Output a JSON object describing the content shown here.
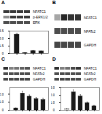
{
  "chart_data": [
    {
      "type": "heatmap",
      "title": "A",
      "rows": [
        "NFATC1",
        "p-ERK1/2",
        "ERK"
      ],
      "cells": [
        [
          0.22,
          0.22,
          0.22,
          0.22
        ],
        [
          0.55,
          0.22,
          0.22,
          0.22
        ],
        [
          0.3,
          0.3,
          0.3,
          0.3
        ]
      ],
      "tick_labels": "y"
    },
    {
      "type": "bar",
      "categories": [
        null,
        null,
        null,
        null
      ],
      "values": [
        3.8,
        0.15,
        0.55,
        0.45
      ],
      "errors": [
        0.25,
        0.04,
        0.08,
        0.08
      ],
      "colors": [
        "#1a1a1a",
        "#1a1a1a",
        "#1a1a1a",
        "#1a1a1a"
      ],
      "ylim": [
        0,
        4.5
      ],
      "yticks": [
        0,
        1.5,
        {
          "value": 3.0,
          "label": "3.0"
        },
        4.5
      ],
      "tick_labels": "y"
    },
    {
      "type": "heatmap",
      "title": "B",
      "rows": [
        "NFATC1",
        "NFATc2",
        "GAPDH"
      ],
      "cells": [
        [
          0.65,
          0.15,
          0.2,
          0.2
        ],
        [
          0.3,
          0.3,
          0.3,
          0.3
        ],
        [
          0.28,
          0.28,
          0.28,
          0.28
        ]
      ],
      "tick_labels": "y"
    },
    {
      "type": "heatmap",
      "title": "C",
      "rows": [
        "NFATC1",
        "NFATc2",
        "GAPDH"
      ],
      "cells": [
        [
          0.18,
          0.5,
          0.45,
          0.38,
          0.32
        ],
        [
          0.3,
          0.3,
          0.3,
          0.3,
          0.3
        ],
        [
          0.28,
          0.28,
          0.28,
          0.28,
          0.28
        ]
      ],
      "tick_labels": "y"
    },
    {
      "type": "bar",
      "categories": [
        null,
        null,
        null,
        null,
        null
      ],
      "values": [
        0.25,
        2.1,
        1.7,
        1.4,
        1.3
      ],
      "errors": [
        0.04,
        0.28,
        0.2,
        0.18,
        0.18
      ],
      "colors": [
        "#1a1a1a",
        "#1a1a1a",
        "#1a1a1a",
        "#1a1a1a",
        "#1a1a1a"
      ],
      "ylim": [
        0,
        2.8
      ],
      "yticks": [
        0,
        {
          "value": 1.0,
          "label": "1.0"
        },
        {
          "value": 2.0,
          "label": "2.0"
        }
      ],
      "tick_labels": "y"
    },
    {
      "type": "heatmap",
      "title": "D",
      "rows": [
        "NFATC1",
        "NFATc2",
        "GAPDH"
      ],
      "cells": [
        [
          0.18,
          0.5,
          0.44,
          0.28,
          0.2
        ],
        [
          0.3,
          0.3,
          0.3,
          0.3,
          0.3
        ],
        [
          0.28,
          0.28,
          0.28,
          0.28,
          0.28
        ]
      ],
      "tick_labels": "y"
    },
    {
      "type": "bar",
      "categories": [
        null,
        null,
        null,
        null,
        null
      ],
      "values": [
        0.2,
        2.4,
        1.85,
        0.95,
        0.55
      ],
      "errors": [
        0.04,
        0.3,
        0.22,
        0.15,
        0.1
      ],
      "colors": [
        "#ffffff",
        "#1a1a1a",
        "#1a1a1a",
        "#1a1a1a",
        "#1a1a1a"
      ],
      "ylim": [
        0,
        3.0
      ],
      "yticks": [
        0,
        {
          "value": 1.0,
          "label": "1.0"
        },
        {
          "value": 2.0,
          "label": "2.0"
        },
        {
          "value": 3.0,
          "label": "3.0"
        }
      ],
      "tick_labels": "y"
    }
  ]
}
